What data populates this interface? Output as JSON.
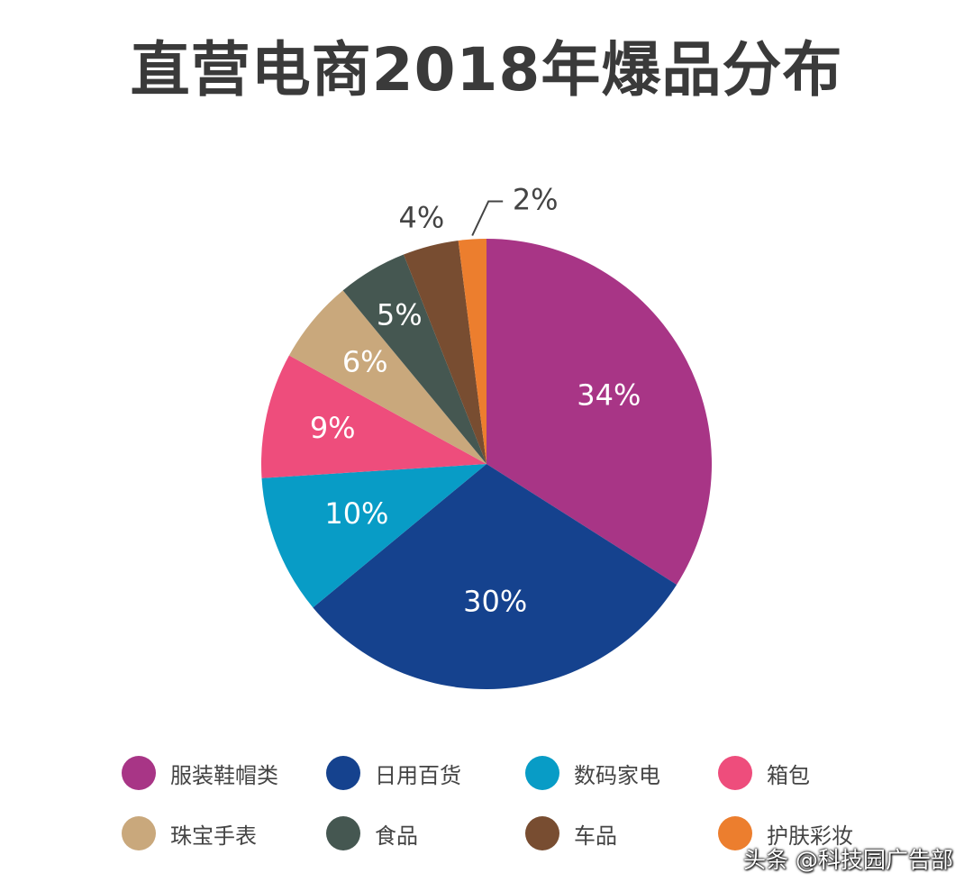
{
  "title": "直营电商2018年爆品分布",
  "chart_data": {
    "type": "pie",
    "title": "直营电商2018年爆品分布",
    "legend_position": "bottom",
    "slices": [
      {
        "label": "服装鞋帽类",
        "value": 34,
        "value_label": "34%",
        "color": "#A83586"
      },
      {
        "label": "日用百货",
        "value": 30,
        "value_label": "30%",
        "color": "#15428E"
      },
      {
        "label": "数码家电",
        "value": 10,
        "value_label": "10%",
        "color": "#089CC6"
      },
      {
        "label": "箱包",
        "value": 9,
        "value_label": "9%",
        "color": "#EE4D7C"
      },
      {
        "label": "珠宝手表",
        "value": 6,
        "value_label": "6%",
        "color": "#C9A87C"
      },
      {
        "label": "食品",
        "value": 5,
        "value_label": "5%",
        "color": "#455751"
      },
      {
        "label": "车品",
        "value": 4,
        "value_label": "4%",
        "color": "#784D31"
      },
      {
        "label": "护肤彩妆",
        "value": 2,
        "value_label": "2%",
        "color": "#EC7E2E"
      }
    ]
  },
  "watermark": "头条 @科技园广告部"
}
